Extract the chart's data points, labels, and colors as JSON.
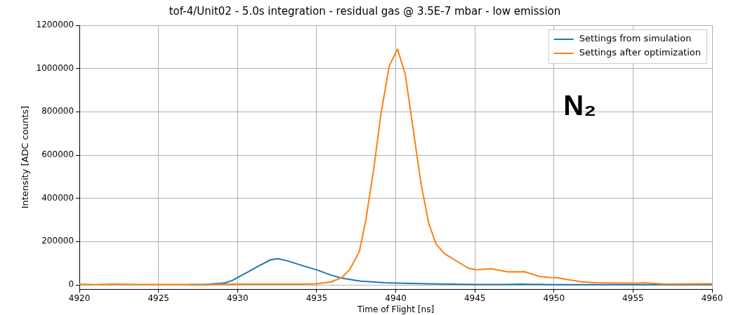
{
  "chart_data": {
    "type": "line",
    "title": "tof-4/Unit02 - 5.0s integration - residual gas @ 3.5E-7 mbar - low emission",
    "xlabel": "Time of Flight [ns]",
    "ylabel": "Intensity [ADC counts]",
    "annotations": [
      "N₂"
    ],
    "series": [
      {
        "name": "Settings from simulation",
        "color": "#1f77b4",
        "x": [
          4927,
          4928,
          4929.2,
          4929.66,
          4930.0,
          4930.7,
          4931.5,
          4932.1,
          4932.55,
          4933.2,
          4934.1,
          4935.1,
          4935.9,
          4936.6,
          4937.8,
          4939.3,
          4940.5,
          4942,
          4943.5,
          4945,
          4947,
          4948,
          4950,
          4953,
          4956,
          4958,
          4960
        ],
        "values": [
          1000,
          2000,
          9000,
          20000,
          34000,
          61000,
          94000,
          116000,
          121000,
          110000,
          89000,
          67000,
          45000,
          31000,
          17000,
          10000,
          7000,
          5000,
          3000,
          2000,
          2000,
          3000,
          1000,
          1000,
          1000,
          1000,
          1000
        ]
      },
      {
        "name": "Settings after optimization",
        "color": "#ff7f0e",
        "x": [
          4920,
          4921,
          4922,
          4924,
          4926,
          4928,
          4930,
          4932,
          4934,
          4935,
          4935.9,
          4936.6,
          4937.1,
          4937.7,
          4938.1,
          4938.6,
          4939.07,
          4939.59,
          4940.11,
          4940.6,
          4941.6,
          4942.1,
          4942.56,
          4943.1,
          4944.56,
          4945.08,
          4946.04,
          4947.08,
          4948.12,
          4949.08,
          4949.68,
          4950.12,
          4951.76,
          4952.6,
          4955.3,
          4955.6,
          4957.1,
          4960
        ],
        "values": [
          3000,
          1000,
          3000,
          2000,
          2000,
          2000,
          3000,
          3000,
          3000,
          5000,
          13000,
          34000,
          72000,
          154000,
          296000,
          531000,
          793000,
          1012000,
          1090000,
          974000,
          466000,
          280000,
          187000,
          143000,
          78000,
          70000,
          75000,
          60000,
          61000,
          39000,
          34000,
          33000,
          14000,
          10000,
          7000,
          10000,
          3000,
          5000
        ]
      }
    ],
    "xlim": [
      4920,
      4960
    ],
    "xticks": [
      4920,
      4925,
      4930,
      4935,
      4940,
      4945,
      4950,
      4955,
      4960
    ],
    "ylim": [
      -20000,
      1200000
    ],
    "yticks": [
      0,
      200000,
      400000,
      600000,
      800000,
      1000000,
      1200000
    ],
    "grid": true,
    "legend": "top right",
    "marker": "none",
    "line_style": "solid"
  }
}
